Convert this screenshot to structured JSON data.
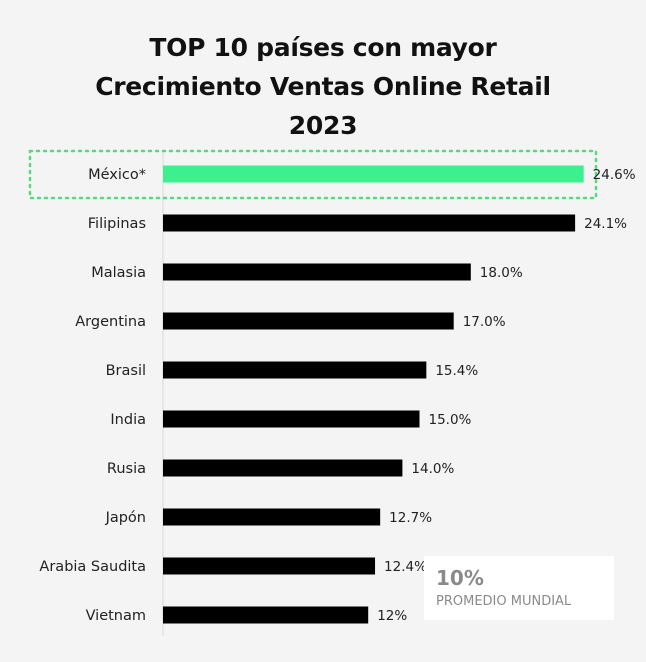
{
  "chart_data": {
    "type": "bar",
    "orientation": "horizontal",
    "title": [
      "TOP 10 países con mayor",
      "Crecimiento Ventas Online Retail",
      "2023"
    ],
    "categories": [
      "México*",
      "Filipinas",
      "Malasia",
      "Argentina",
      "Brasil",
      "India",
      "Rusia",
      "Japón",
      "Arabia Saudita",
      "Vietnam"
    ],
    "values": [
      24.6,
      24.1,
      18.0,
      17.0,
      15.4,
      15.0,
      14.0,
      12.7,
      12.4,
      12.0
    ],
    "value_labels": [
      "24.6%",
      "24.1%",
      "18.0%",
      "17.0%",
      "15.4%",
      "15.0%",
      "14.0%",
      "12.7%",
      "12.4%",
      "12%"
    ],
    "highlight_index": 0,
    "bar_color": "#000000",
    "highlight_color": "#3cf08e",
    "highlight_outline_color": "#57d97f",
    "xlim": [
      0,
      30
    ],
    "grid": false,
    "legend": "none"
  },
  "callout": {
    "value": "10%",
    "label": "PROMEDIO MUNDIAL",
    "text_color": "#8a8a8a",
    "background": "#ffffff"
  }
}
